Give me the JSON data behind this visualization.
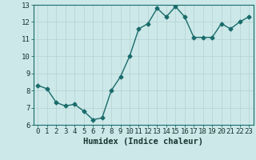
{
  "x": [
    0,
    1,
    2,
    3,
    4,
    5,
    6,
    7,
    8,
    9,
    10,
    11,
    12,
    13,
    14,
    15,
    16,
    17,
    18,
    19,
    20,
    21,
    22,
    23
  ],
  "y": [
    8.3,
    8.1,
    7.3,
    7.1,
    7.2,
    6.8,
    6.3,
    6.4,
    8.0,
    8.8,
    10.0,
    11.6,
    11.9,
    12.8,
    12.3,
    12.9,
    12.3,
    11.1,
    11.1,
    11.1,
    11.9,
    11.6,
    12.0,
    12.3
  ],
  "xlabel": "Humidex (Indice chaleur)",
  "xlim": [
    -0.5,
    23.5
  ],
  "ylim": [
    6,
    13
  ],
  "yticks": [
    6,
    7,
    8,
    9,
    10,
    11,
    12,
    13
  ],
  "bg_color": "#cce8e8",
  "line_color": "#1a6b6b",
  "grid_color": "#b8d4d4",
  "marker": "D",
  "marker_size": 2.5,
  "line_width": 1.0,
  "xlabel_fontsize": 7.5,
  "tick_fontsize": 6.5
}
